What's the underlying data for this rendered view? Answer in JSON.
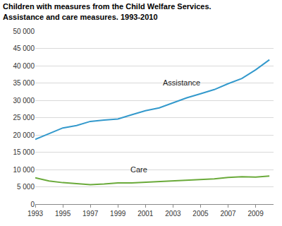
{
  "chart_data": {
    "type": "line",
    "title": [
      "Children with measures from the Child Welfare Services.",
      "Assistance and care measures. 1993-2010"
    ],
    "x": [
      1993,
      1994,
      1995,
      1996,
      1997,
      1998,
      1999,
      2000,
      2001,
      2002,
      2003,
      2004,
      2005,
      2006,
      2007,
      2008,
      2009,
      2010
    ],
    "series": [
      {
        "color": "#3399cc",
        "values": [
          18700,
          20300,
          22000,
          22700,
          23900,
          24300,
          24600,
          25800,
          27000,
          27800,
          29300,
          30700,
          31900,
          33100,
          34800,
          36300,
          38800,
          41700
        ]
      },
      {
        "color": "#6aaa3a",
        "values": [
          7600,
          6700,
          6200,
          5900,
          5600,
          5800,
          6100,
          6100,
          6300,
          6600,
          6800,
          6900,
          7100,
          7300,
          7700,
          7900,
          7800,
          8100
        ]
      }
    ],
    "annotations": [
      {
        "text": "Assistance",
        "x": 2003.6,
        "y": 33500
      },
      {
        "text": "Care",
        "x": 2000.5,
        "y": 8300
      }
    ],
    "xlim": [
      1993,
      2010.3
    ],
    "xticks": [
      1993,
      1995,
      1997,
      1999,
      2001,
      2003,
      2005,
      2007,
      2009
    ],
    "ylim": [
      0,
      50000
    ],
    "yticks": [
      0,
      {
        "value": 5000,
        "label": "5 000"
      },
      {
        "value": 10000,
        "label": "10 000"
      },
      {
        "value": 15000,
        "label": "15 000"
      },
      {
        "value": 20000,
        "label": "20 000"
      },
      {
        "value": 25000,
        "label": "25 000"
      },
      {
        "value": 30000,
        "label": "30 000"
      },
      {
        "value": 35000,
        "label": "35 000"
      },
      {
        "value": 40000,
        "label": "40 000"
      },
      {
        "value": 45000,
        "label": "45 000"
      },
      {
        "value": 50000,
        "label": "50 000"
      }
    ],
    "grid": true
  }
}
